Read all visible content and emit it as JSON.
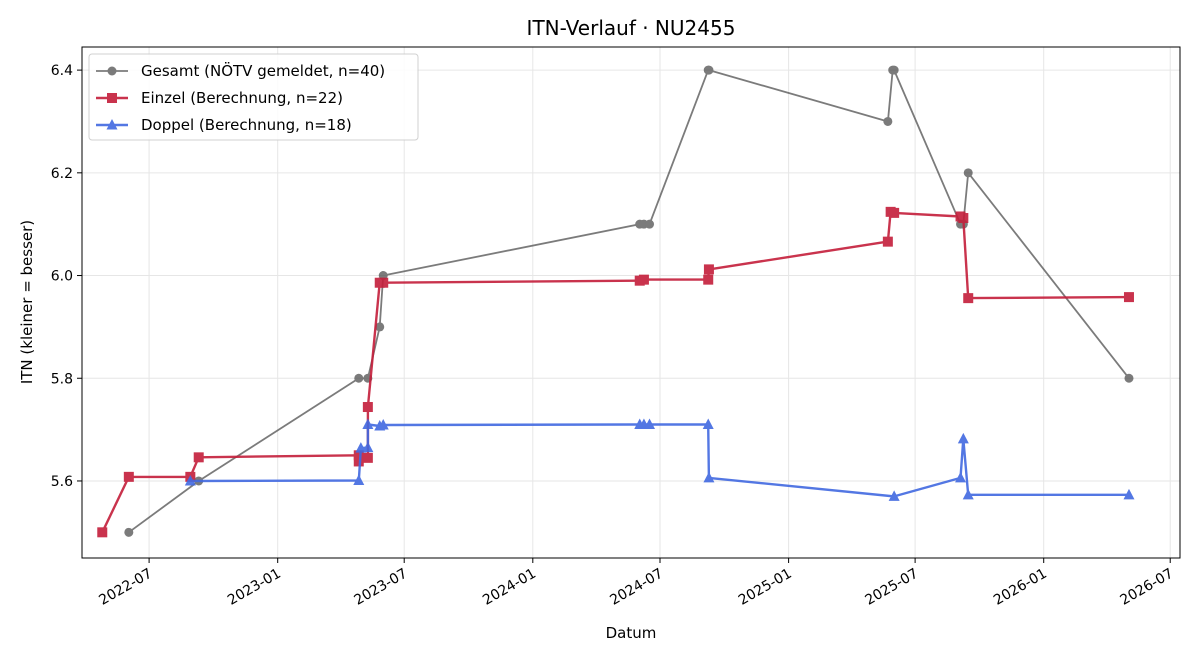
{
  "chart_data": {
    "type": "line",
    "title": "ITN-Verlauf · NU2455",
    "xlabel": "Datum",
    "ylabel": "ITN  (kleiner = besser)",
    "x_axis_type": "date",
    "xlim": [
      "2022-03-27",
      "2026-07-15"
    ],
    "ylim": [
      5.45,
      6.445
    ],
    "x_ticks": [
      "2022-07-01",
      "2023-01-01",
      "2023-07-01",
      "2024-01-01",
      "2024-07-01",
      "2025-01-01",
      "2025-07-01",
      "2026-01-01",
      "2026-07-01"
    ],
    "x_tick_labels": [
      "2022-07",
      "2023-01",
      "2023-07",
      "2024-01",
      "2024-07",
      "2025-01",
      "2025-07",
      "2026-01",
      "2026-07"
    ],
    "y_ticks": [
      5.6,
      5.8,
      6.0,
      6.2,
      6.4
    ],
    "y_tick_labels": [
      "5.6",
      "5.8",
      "6.0",
      "6.2",
      "6.4"
    ],
    "grid": true,
    "legend_position": "top-left",
    "series": [
      {
        "name": "Gesamt (NÖTV gemeldet, n=40)",
        "color": "#444444",
        "marker": "circle",
        "points": [
          [
            "2022-06-02",
            5.5
          ],
          [
            "2022-09-10",
            5.6
          ],
          [
            "2023-04-27",
            5.8
          ],
          [
            "2023-05-10",
            5.8
          ],
          [
            "2023-05-27",
            5.9
          ],
          [
            "2023-06-01",
            6.0
          ],
          [
            "2024-06-02",
            6.1
          ],
          [
            "2024-06-08",
            6.1
          ],
          [
            "2024-06-16",
            6.1
          ],
          [
            "2024-09-08",
            6.4
          ],
          [
            "2024-09-09",
            6.4
          ],
          [
            "2025-05-23",
            6.3
          ],
          [
            "2025-05-30",
            6.4
          ],
          [
            "2025-06-01",
            6.4
          ],
          [
            "2025-09-04",
            6.1
          ],
          [
            "2025-09-08",
            6.1
          ],
          [
            "2025-09-15",
            6.2
          ],
          [
            "2026-05-03",
            5.8
          ]
        ]
      },
      {
        "name": "Einzel (Berechnung, n=22)",
        "color": "#c41e3a",
        "marker": "square",
        "points": [
          [
            "2022-04-25",
            5.5
          ],
          [
            "2022-06-02",
            5.608
          ],
          [
            "2022-08-29",
            5.608
          ],
          [
            "2022-09-10",
            5.646
          ],
          [
            "2023-04-27",
            5.65
          ],
          [
            "2023-04-27",
            5.638
          ],
          [
            "2023-05-10",
            5.645
          ],
          [
            "2023-05-10",
            5.744
          ],
          [
            "2023-05-27",
            5.986
          ],
          [
            "2023-06-01",
            5.986
          ],
          [
            "2024-06-02",
            5.99
          ],
          [
            "2024-06-08",
            5.992
          ],
          [
            "2024-09-08",
            5.992
          ],
          [
            "2024-09-09",
            6.012
          ],
          [
            "2025-05-23",
            6.066
          ],
          [
            "2025-05-27",
            6.124
          ],
          [
            "2025-06-01",
            6.122
          ],
          [
            "2025-09-04",
            6.115
          ],
          [
            "2025-09-08",
            6.112
          ],
          [
            "2025-09-15",
            5.956
          ],
          [
            "2026-05-03",
            5.958
          ]
        ]
      },
      {
        "name": "Doppel (Berechnung, n=18)",
        "color": "#4169e1",
        "marker": "triangle",
        "points": [
          [
            "2022-08-29",
            5.6
          ],
          [
            "2023-04-27",
            5.601
          ],
          [
            "2023-04-30",
            5.664
          ],
          [
            "2023-05-10",
            5.665
          ],
          [
            "2023-05-10",
            5.71
          ],
          [
            "2023-05-27",
            5.707
          ],
          [
            "2023-06-01",
            5.709
          ],
          [
            "2024-06-02",
            5.71
          ],
          [
            "2024-06-08",
            5.71
          ],
          [
            "2024-06-16",
            5.71
          ],
          [
            "2024-09-08",
            5.71
          ],
          [
            "2024-09-09",
            5.606
          ],
          [
            "2025-06-01",
            5.57
          ],
          [
            "2025-09-04",
            5.606
          ],
          [
            "2025-09-08",
            5.682
          ],
          [
            "2025-09-15",
            5.573
          ],
          [
            "2026-05-03",
            5.573
          ]
        ]
      }
    ]
  }
}
